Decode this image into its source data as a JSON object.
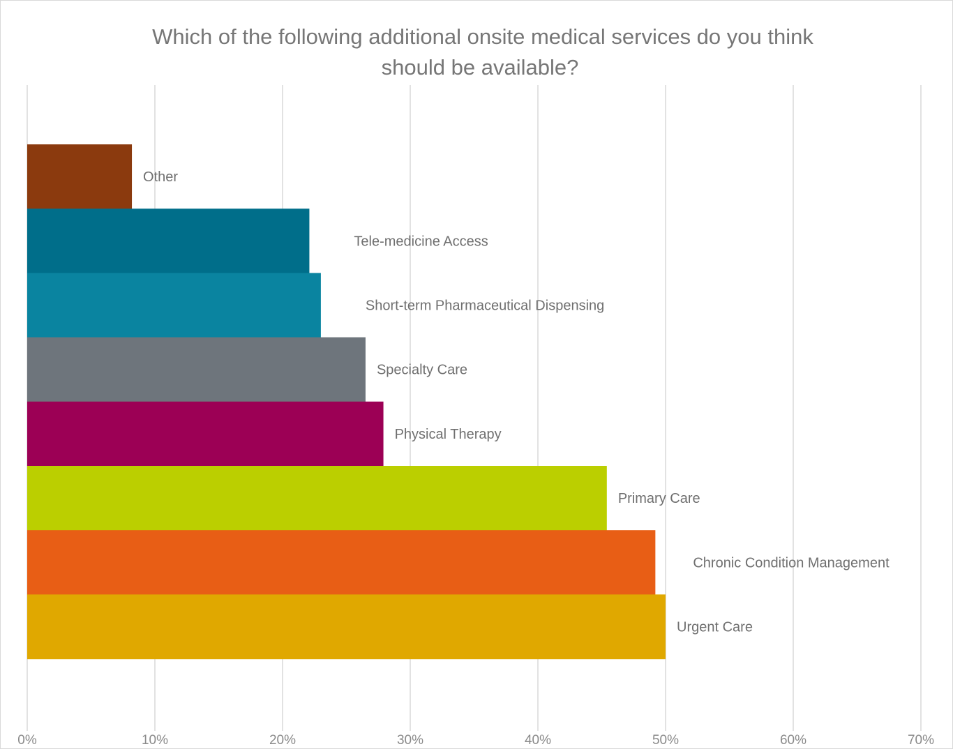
{
  "chart_data": {
    "type": "bar",
    "orientation": "horizontal",
    "title_lines": [
      "Which of the following additional onsite medical services do you think",
      "should be available?"
    ],
    "xlabel": "",
    "ylabel": "",
    "xlim": [
      0,
      70
    ],
    "x_ticks": [
      0,
      10,
      20,
      30,
      40,
      50,
      60,
      70
    ],
    "x_tick_labels": [
      "0%",
      "10%",
      "20%",
      "30%",
      "40%",
      "50%",
      "60%",
      "70%"
    ],
    "grid": true,
    "legend": "none",
    "categories": [
      "Other",
      "Tele-medicine Access",
      "Short-term Pharmaceutical Dispensing",
      "Specialty Care",
      "Physical Therapy",
      "Primary Care",
      "Chronic Condition Management",
      "Urgent Care"
    ],
    "values": [
      8.2,
      22.1,
      23.0,
      26.5,
      27.9,
      45.4,
      49.2,
      50.0
    ],
    "colors": [
      "#8B3A0E",
      "#006E8A",
      "#0A84A0",
      "#6E757C",
      "#9C0055",
      "#BBCF00",
      "#E85E15",
      "#E0A800"
    ]
  }
}
